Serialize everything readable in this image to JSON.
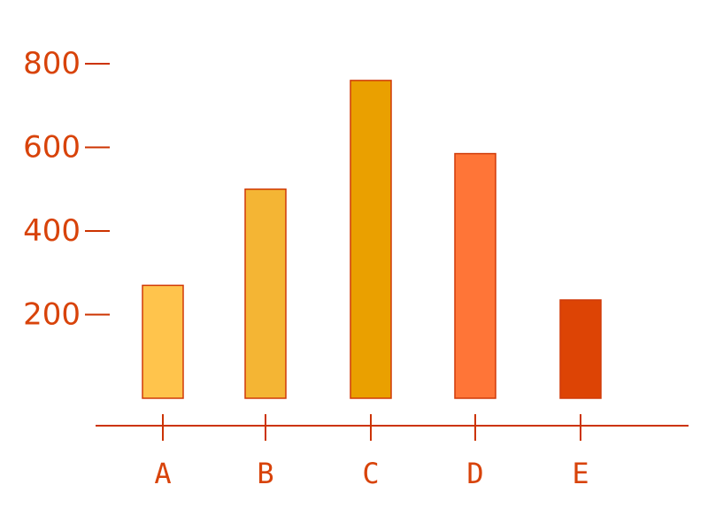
{
  "chart_data": {
    "type": "bar",
    "categories": [
      "A",
      "B",
      "C",
      "D",
      "E"
    ],
    "values": [
      270,
      500,
      760,
      585,
      235
    ],
    "ylim": [
      0,
      800
    ],
    "yticks": [
      200,
      400,
      600,
      800
    ],
    "ytick_labels": [
      "200",
      "400",
      "600",
      "800"
    ],
    "grid": false,
    "legend": "none",
    "colors": {
      "axis": "#cc3300",
      "label": "#d8430a",
      "bars": [
        "#ffc44c",
        "#f4b534",
        "#eaa000",
        "#ff7537",
        "#dd4405"
      ],
      "bar_stroke": "#d03a08"
    }
  }
}
